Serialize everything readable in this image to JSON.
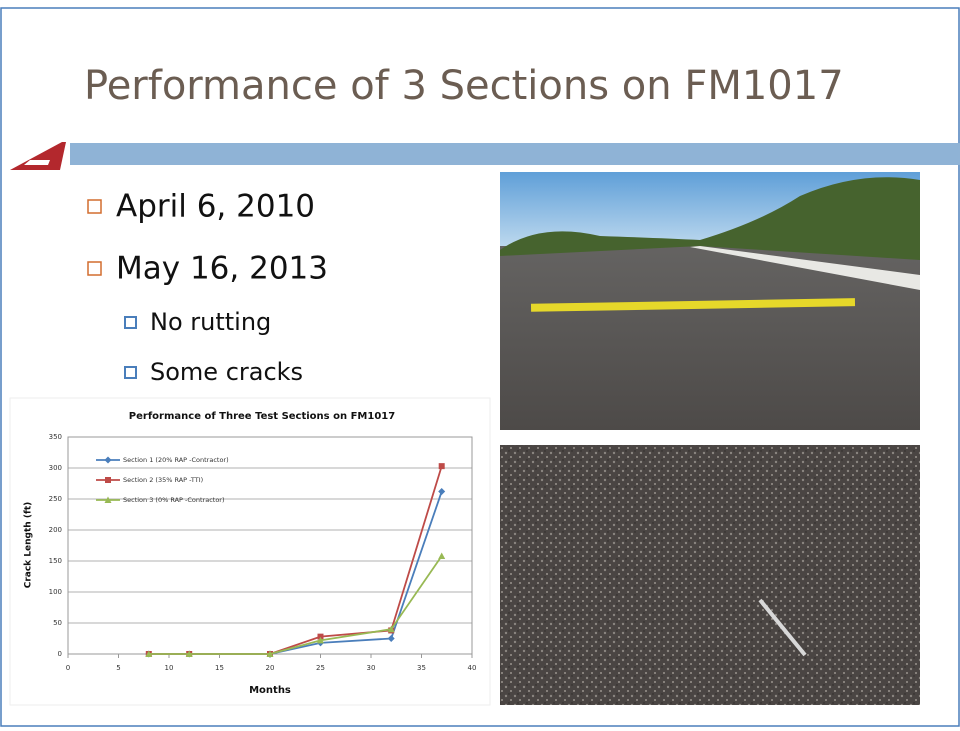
{
  "slide": {
    "title": "Performance of 3 Sections on FM1017",
    "bullets": [
      "April 6, 2010",
      "May 16, 2013"
    ],
    "sub_bullets": [
      "No rutting",
      "Some cracks"
    ]
  },
  "chart_data": {
    "type": "line",
    "title": "Performance of Three Test Sections on FM1017",
    "x_label": "Months",
    "y_label": "Crack Length (ft)",
    "x": [
      8,
      12,
      20,
      25,
      32,
      37
    ],
    "series": [
      {
        "name": "Section 1 (20% RAP -Contractor)",
        "color": "#4a7ebb",
        "values": [
          0,
          0,
          0,
          18,
          25,
          262
        ]
      },
      {
        "name": "Section 2 (35% RAP -TTI)",
        "color": "#be4b48",
        "values": [
          0,
          0,
          0,
          28,
          38,
          303
        ]
      },
      {
        "name": "Section 3 (0% RAP -Contractor)",
        "color": "#98b954",
        "values": [
          0,
          0,
          0,
          22,
          40,
          158
        ]
      }
    ],
    "xlim": [
      0,
      40
    ],
    "xticks": [
      0,
      5,
      10,
      15,
      20,
      25,
      30,
      35,
      40
    ],
    "ylim": [
      0,
      350
    ],
    "yticks": [
      0,
      50,
      100,
      150,
      200,
      250,
      300,
      350
    ],
    "grid": true
  }
}
